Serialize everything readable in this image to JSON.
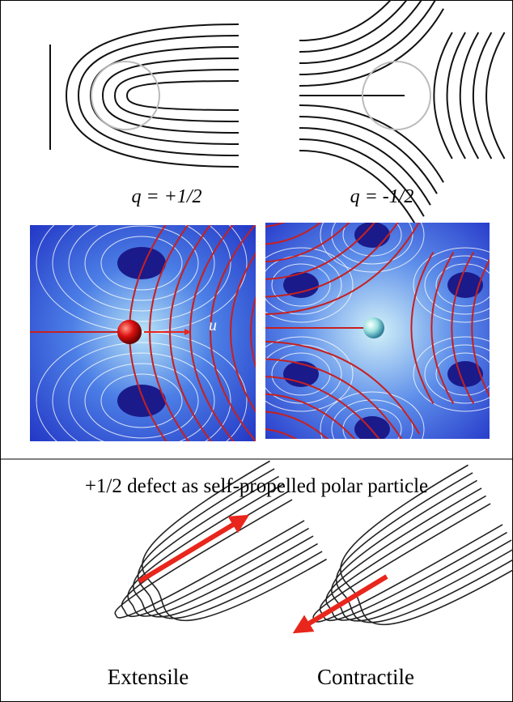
{
  "labels": {
    "plus_half": "q = +1/2",
    "minus_half": "q = -1/2",
    "velocity": "u"
  },
  "section_title": "+1/2 defect as self-propelled polar particle",
  "bottom_labels": {
    "left": "Extensile",
    "right": "Contractile"
  }
}
